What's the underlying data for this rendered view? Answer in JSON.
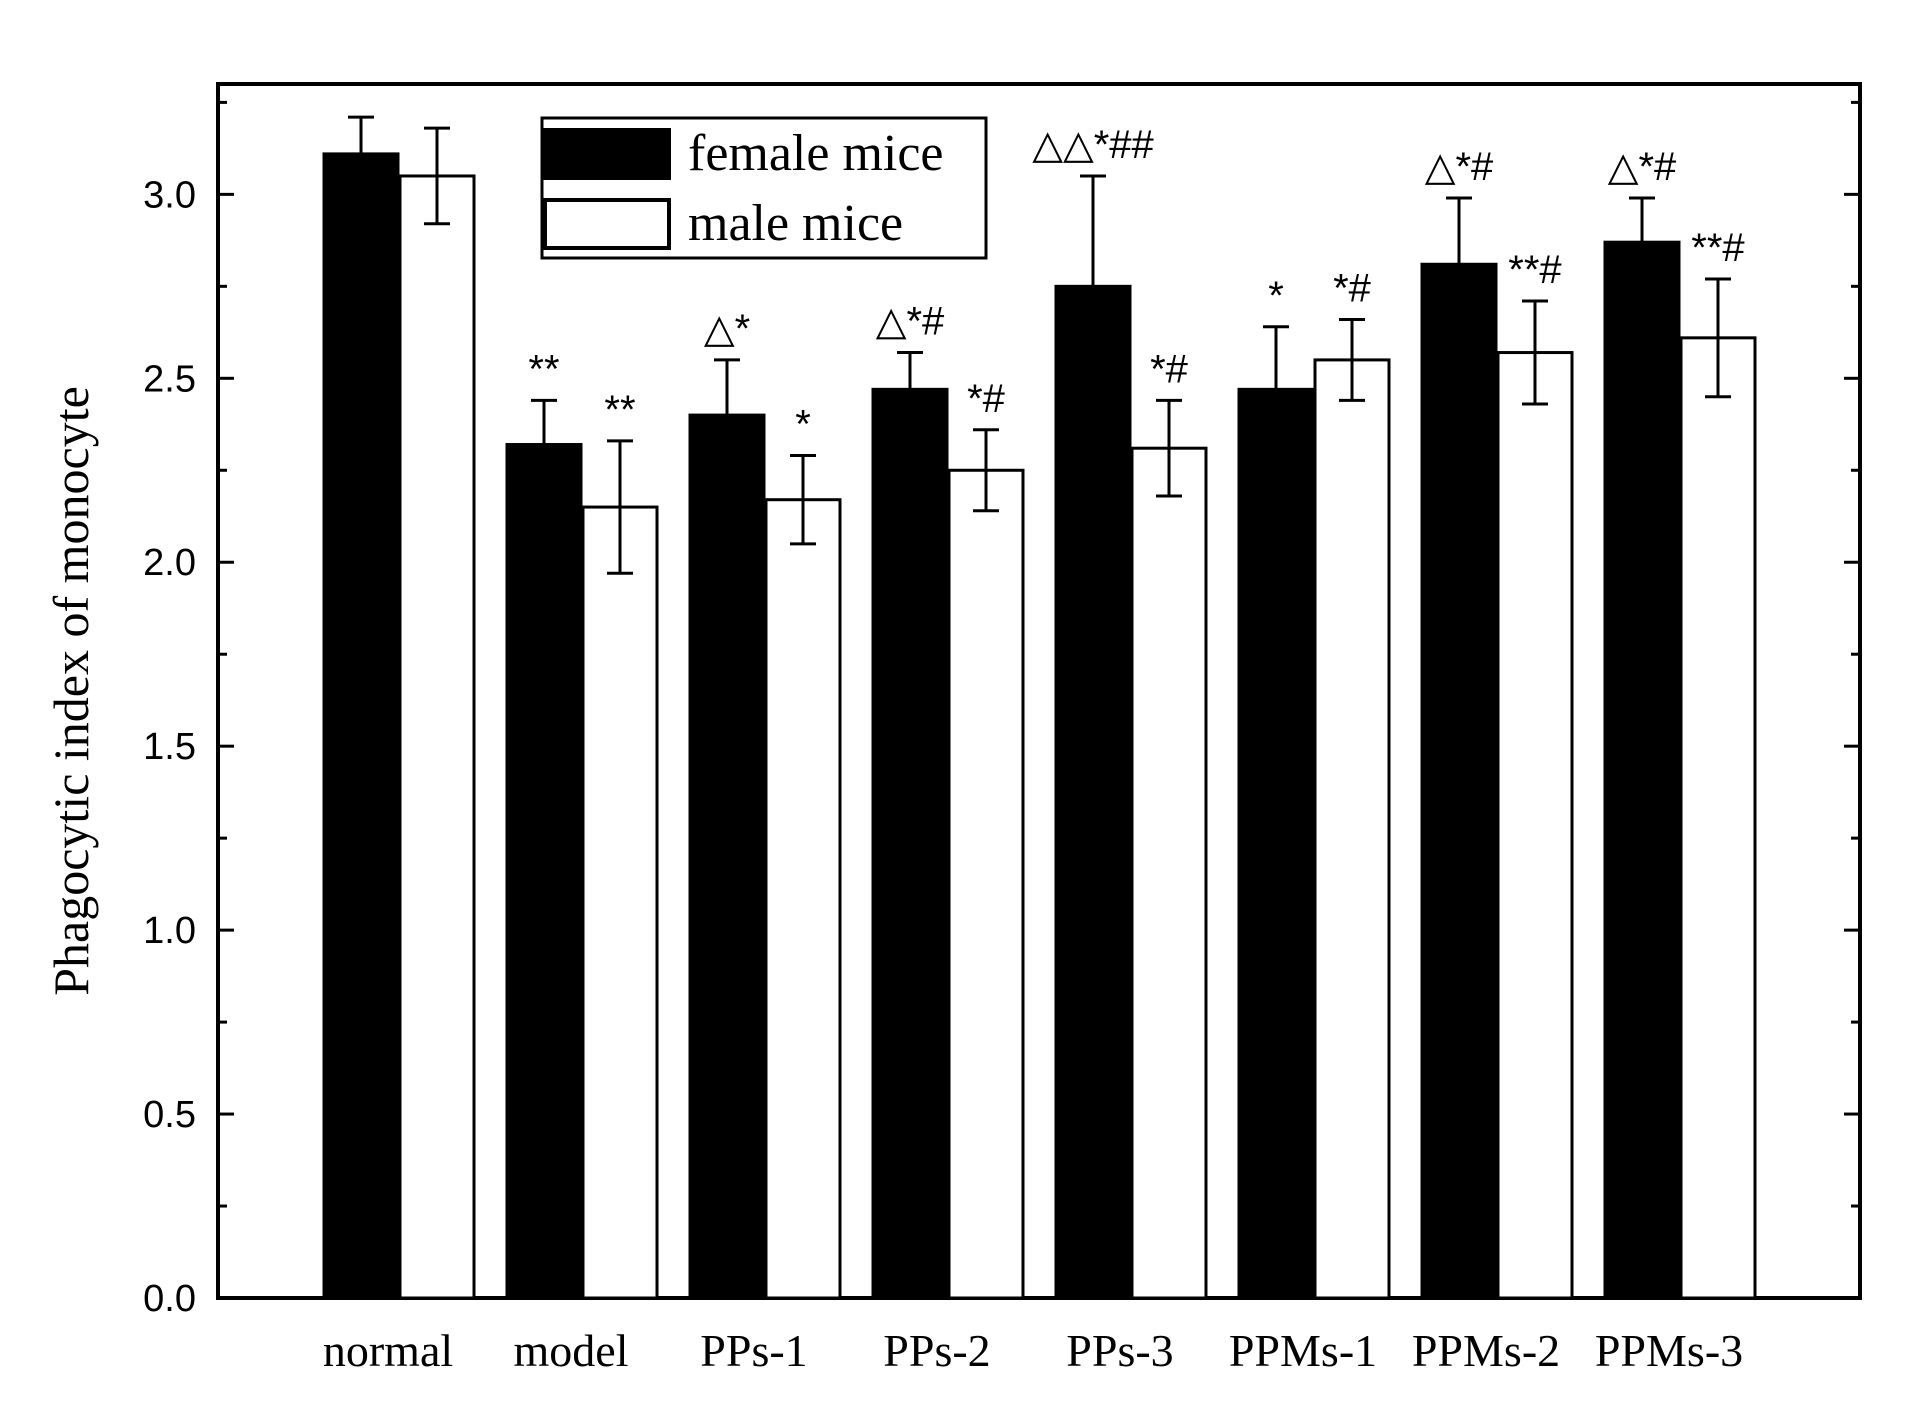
{
  "chart_data": {
    "type": "bar",
    "title": "",
    "xlabel": "",
    "ylabel": "Phagocytic index of monocyte",
    "ylim": [
      0,
      3.3
    ],
    "yticks": [
      "0.0",
      "0.5",
      "1.0",
      "1.5",
      "2.0",
      "2.5",
      "3.0"
    ],
    "categories": [
      "normal",
      "model",
      "PPs-1",
      "PPs-2",
      "PPs-3",
      "PPMs-1",
      "PPMs-2",
      "PPMs-3"
    ],
    "legend_position": "top-left",
    "grid": false,
    "series": [
      {
        "name": "female mice",
        "fill": "#000000",
        "values": [
          3.11,
          2.32,
          2.4,
          2.47,
          2.75,
          2.47,
          2.81,
          2.87
        ],
        "errors": [
          0.1,
          0.12,
          0.15,
          0.1,
          0.3,
          0.17,
          0.18,
          0.12
        ],
        "annotations": [
          "",
          "**",
          "△*",
          "△*#",
          "△△*##",
          "*",
          "△*#",
          "△*#"
        ]
      },
      {
        "name": "male mice",
        "fill": "#ffffff",
        "values": [
          3.05,
          2.15,
          2.17,
          2.25,
          2.31,
          2.55,
          2.57,
          2.61
        ],
        "errors": [
          0.13,
          0.18,
          0.12,
          0.11,
          0.13,
          0.11,
          0.14,
          0.16
        ],
        "annotations": [
          "",
          "**",
          "*",
          "*#",
          "*#",
          "*#",
          "**#",
          "**#"
        ]
      }
    ]
  }
}
